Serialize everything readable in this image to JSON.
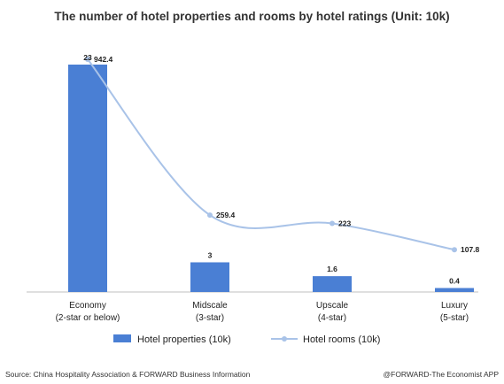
{
  "chart_data": {
    "type": "bar",
    "title": "The number of hotel properties and rooms by hotel ratings (Unit: 10k)",
    "categories": [
      [
        "Economy",
        "(2-star or below)"
      ],
      [
        "Midscale",
        "(3-star)"
      ],
      [
        "Upscale",
        "(4-star)"
      ],
      [
        "Luxury",
        "(5-star)"
      ]
    ],
    "series": [
      {
        "name": "Hotel properties (10k)",
        "type": "bar",
        "values": [
          23,
          3,
          1.6,
          0.4
        ],
        "color": "#4a7fd4"
      },
      {
        "name": "Hotel rooms (10k)",
        "type": "line",
        "smooth": true,
        "values": [
          942.4,
          259.4,
          223,
          107.8
        ],
        "color": "#a9c3e8"
      }
    ],
    "bar_axis": {
      "min": 0,
      "max": 23
    },
    "line_axis": {
      "min": 0,
      "max": 942.4
    },
    "grid": false,
    "legend_position": "bottom"
  },
  "footer": {
    "source": "Source: China Hospitality Association & FORWARD Business Information",
    "credit": "@FORWARD-The Economist APP"
  }
}
